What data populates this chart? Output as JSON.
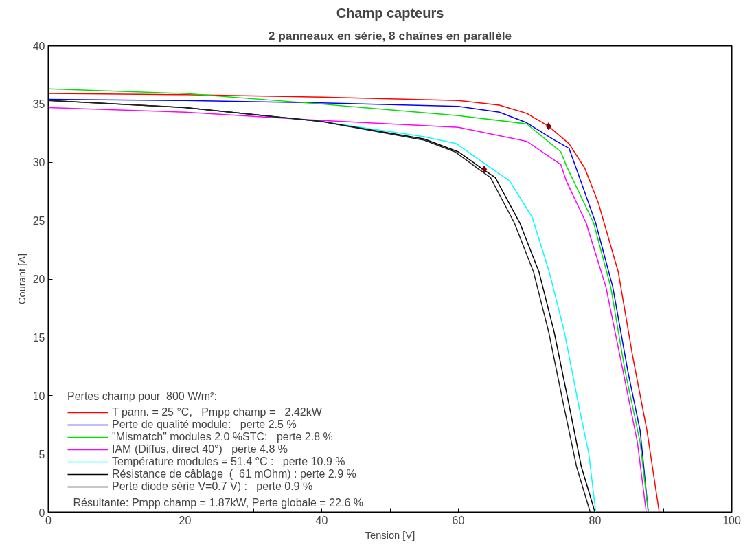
{
  "chart_data": {
    "type": "line",
    "title": "Champ capteurs",
    "subtitle": "2 panneaux en série, 8 chaînes en parallèle",
    "xlabel": "Tension [V]",
    "ylabel": "Courant [A]",
    "legend_title": "Pertes champ pour  800 W/m²:",
    "xlim": [
      0,
      100
    ],
    "ylim": [
      0,
      40
    ],
    "xticks": [
      0,
      {
        "value": 10,
        "label": null
      },
      20,
      {
        "value": 30,
        "label": null
      },
      40,
      {
        "value": 50,
        "label": null
      },
      60,
      {
        "value": 70,
        "label": null
      },
      80,
      {
        "value": 90,
        "label": null
      },
      100
    ],
    "yticks": [
      0,
      5,
      10,
      15,
      20,
      25,
      30,
      35,
      40
    ],
    "grid": false,
    "legend": "bottom left",
    "line_style": "solid",
    "marker": "none",
    "series": [
      {
        "name": "T pann. = 25 °C,   Pmpp champ =   2.42kW",
        "color": "#ff0000",
        "x": [
          0,
          20,
          40,
          60,
          66,
          70,
          73.2,
          76.2,
          78.5,
          80.5,
          83.4,
          85.5,
          87.6,
          89.4
        ],
        "values": [
          35.9,
          35.8,
          35.6,
          35.3,
          34.9,
          34.2,
          33.1,
          31.6,
          29.5,
          26.5,
          20.6,
          13.4,
          7.0,
          0
        ]
      },
      {
        "name": "Perte de qualité module:   perte 2.5 %",
        "color": "#0000ff",
        "x": [
          0,
          20,
          40,
          60,
          66,
          70,
          73.8,
          76.2,
          80.1,
          82.6,
          84.8,
          86.6,
          87.8
        ],
        "values": [
          35.4,
          35.3,
          35.1,
          34.8,
          34.3,
          33.4,
          32.0,
          31.2,
          24.8,
          19.3,
          12.1,
          7.0,
          0
        ]
      },
      {
        "name": "\"Mismatch\" modules 2.0 %STC:   perte 2.8 %",
        "color": "#00e000",
        "x": [
          0,
          20,
          40,
          60,
          70,
          75.0,
          75.8,
          79.8,
          82.3,
          84.4,
          86.6,
          87.8
        ],
        "values": [
          36.3,
          35.9,
          35.0,
          34.0,
          33.3,
          30.9,
          29.7,
          24.8,
          19.3,
          12.1,
          6.0,
          0
        ]
      },
      {
        "name": "IAM (Diffus, direct 40°)   perte 4.8 %",
        "color": "#ff00ff",
        "x": [
          0,
          20,
          40,
          60,
          70,
          75.0,
          75.8,
          78.7,
          81.6,
          84.1,
          86.2,
          87.5
        ],
        "values": [
          34.7,
          34.3,
          33.6,
          33.0,
          31.8,
          29.8,
          28.4,
          24.8,
          19.3,
          12.1,
          6.0,
          0
        ]
      },
      {
        "name": "Température modules = 51.4 °C :   perte 10.9 %",
        "color": "#00ffff",
        "x": [
          20,
          40,
          50.3,
          55,
          59.7,
          67.5,
          70.8,
          73.3,
          75.5,
          77.6,
          79.1,
          80.1
        ],
        "values": [
          34.7,
          33.5,
          32.6,
          32.2,
          31.6,
          28.4,
          25.3,
          20.6,
          15.5,
          9.2,
          5.0,
          0
        ]
      },
      {
        "name": "Résistance de câblage  (  61 mOhm) : perte 2.9 %",
        "color": "#000000",
        "x": [
          0,
          20,
          40,
          55,
          60,
          63.6,
          65.4,
          69.0,
          71.8,
          74.0,
          76.2,
          78.0,
          80.0
        ],
        "values": [
          35.3,
          34.7,
          33.5,
          32.0,
          30.9,
          29.4,
          28.7,
          24.8,
          20.6,
          15.5,
          9.2,
          3.9,
          0
        ]
      },
      {
        "name": "Perte diode série V=0.7 V) :   perte 0.9 %",
        "color": "#202020",
        "x": [
          0,
          20,
          40,
          55,
          59.5,
          63.0,
          64.7,
          68.2,
          71.0,
          73.2,
          75.4,
          77.3,
          79.3
        ],
        "values": [
          35.3,
          34.7,
          33.5,
          31.9,
          30.9,
          29.4,
          28.7,
          24.8,
          20.6,
          15.5,
          9.2,
          3.9,
          0
        ]
      },
      {
        "type": "scatter",
        "marker": "diamond",
        "color": "#800000",
        "x": [
          73.2,
          63.8
        ],
        "values": [
          33.1,
          29.4
        ]
      }
    ],
    "annotations": [
      "Résultante: Pmpp champ =   1.87kW, Perte globale = 22.6 %"
    ]
  }
}
